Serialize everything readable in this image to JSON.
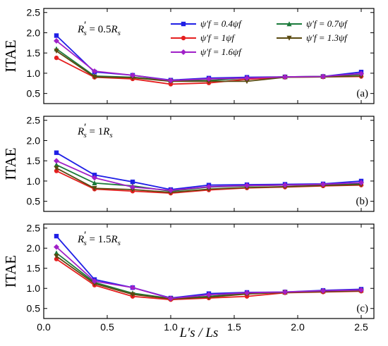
{
  "colors": {
    "s04": "#1f1fe6",
    "s07": "#1a7a3a",
    "s1": "#e51f1f",
    "s13": "#5a4a10",
    "s16": "#a020c8"
  },
  "xlabel": "L′s / Ls",
  "chart_data": [
    {
      "type": "line",
      "panel_tag": "(a)",
      "annotation": "R′s = 0.5Rs",
      "ylabel": "ITAE",
      "xlim": [
        0,
        2.6
      ],
      "ylim": [
        0.25,
        2.6
      ],
      "xticks": [
        "0.0",
        "0.5",
        "1.0",
        "1.5",
        "2.0",
        "2.5"
      ],
      "yticks": [
        "0.5",
        "1.0",
        "1.5",
        "2.0",
        "2.5"
      ],
      "legend": {
        "placement": "top-right",
        "entries": [
          "ψ′f = 0.4ψf",
          "ψ′f = 0.7ψf",
          "ψ′f = 1ψf",
          "ψ′f = 1.3ψf",
          "ψ′f = 1.6ψf"
        ]
      },
      "x": [
        0.1,
        0.4,
        0.7,
        1.0,
        1.3,
        1.6,
        1.9,
        2.2,
        2.5
      ],
      "series": [
        {
          "name": "ψ′f = 0.4ψf",
          "color_key": "s04",
          "marker": "square",
          "values": [
            1.93,
            1.03,
            0.95,
            0.83,
            0.88,
            0.9,
            0.91,
            0.92,
            1.03
          ]
        },
        {
          "name": "ψ′f = 0.7ψf",
          "color_key": "s07",
          "marker": "triangle",
          "values": [
            1.6,
            0.93,
            0.9,
            0.82,
            0.82,
            0.88,
            0.91,
            0.92,
            0.97
          ]
        },
        {
          "name": "ψ′f = 1ψf",
          "color_key": "s1",
          "marker": "circle",
          "values": [
            1.38,
            0.9,
            0.86,
            0.73,
            0.76,
            0.85,
            0.9,
            0.91,
            0.92
          ]
        },
        {
          "name": "ψ′f = 1.3ψf",
          "color_key": "s13",
          "marker": "triangle-down",
          "values": [
            1.55,
            0.91,
            0.89,
            0.8,
            0.8,
            0.8,
            0.9,
            0.91,
            0.93
          ]
        },
        {
          "name": "ψ′f = 1.6ψf",
          "color_key": "s16",
          "marker": "diamond",
          "values": [
            1.8,
            1.05,
            0.95,
            0.82,
            0.86,
            0.88,
            0.91,
            0.92,
            0.99
          ]
        }
      ]
    },
    {
      "type": "line",
      "panel_tag": "(b)",
      "annotation": "R′s = 1Rs",
      "ylabel": "ITAE",
      "xlim": [
        0,
        2.6
      ],
      "ylim": [
        0.25,
        2.6
      ],
      "xticks": [
        "0.0",
        "0.5",
        "1.0",
        "1.5",
        "2.0",
        "2.5"
      ],
      "yticks": [
        "0.5",
        "1.0",
        "1.5",
        "2.0",
        "2.5"
      ],
      "x": [
        0.1,
        0.4,
        0.7,
        1.0,
        1.3,
        1.6,
        1.9,
        2.2,
        2.5
      ],
      "series": [
        {
          "name": "ψ′f = 0.4ψf",
          "color_key": "s04",
          "marker": "square",
          "values": [
            1.7,
            1.15,
            0.98,
            0.79,
            0.9,
            0.91,
            0.92,
            0.93,
            1.0
          ]
        },
        {
          "name": "ψ′f = 0.7ψf",
          "color_key": "s07",
          "marker": "triangle",
          "values": [
            1.4,
            0.95,
            0.88,
            0.75,
            0.85,
            0.88,
            0.9,
            0.91,
            0.94
          ]
        },
        {
          "name": "ψ′f = 1ψf",
          "color_key": "s1",
          "marker": "circle",
          "values": [
            1.25,
            0.8,
            0.75,
            0.7,
            0.78,
            0.83,
            0.85,
            0.88,
            0.9
          ]
        },
        {
          "name": "ψ′f = 1.3ψf",
          "color_key": "s13",
          "marker": "triangle-down",
          "values": [
            1.32,
            0.82,
            0.79,
            0.72,
            0.8,
            0.84,
            0.86,
            0.89,
            0.91
          ]
        },
        {
          "name": "ψ′f = 1.6ψf",
          "color_key": "s16",
          "marker": "diamond",
          "values": [
            1.5,
            1.08,
            0.85,
            0.77,
            0.86,
            0.89,
            0.9,
            0.92,
            0.96
          ]
        }
      ]
    },
    {
      "type": "line",
      "panel_tag": "(c)",
      "annotation": "R′s = 1.5Rs",
      "ylabel": "ITAE",
      "xlim": [
        0,
        2.6
      ],
      "ylim": [
        0.25,
        2.6
      ],
      "xticks": [
        "0.0",
        "0.5",
        "1.0",
        "1.5",
        "2.0",
        "2.5"
      ],
      "yticks": [
        "0.5",
        "1.0",
        "1.5",
        "2.0",
        "2.5"
      ],
      "x": [
        0.1,
        0.4,
        0.7,
        1.0,
        1.3,
        1.6,
        1.9,
        2.2,
        2.5
      ],
      "series": [
        {
          "name": "ψ′f = 0.4ψf",
          "color_key": "s04",
          "marker": "square",
          "values": [
            2.3,
            1.22,
            1.02,
            0.76,
            0.87,
            0.9,
            0.91,
            0.95,
            0.98
          ]
        },
        {
          "name": "ψ′f = 0.7ψf",
          "color_key": "s07",
          "marker": "triangle",
          "values": [
            1.88,
            1.15,
            0.88,
            0.75,
            0.8,
            0.88,
            0.9,
            0.93,
            0.95
          ]
        },
        {
          "name": "ψ′f = 1ψf",
          "color_key": "s1",
          "marker": "circle",
          "values": [
            1.73,
            1.08,
            0.8,
            0.72,
            0.76,
            0.8,
            0.89,
            0.91,
            0.93
          ]
        },
        {
          "name": "ψ′f = 1.3ψf",
          "color_key": "s13",
          "marker": "triangle-down",
          "values": [
            1.8,
            1.12,
            0.85,
            0.74,
            0.78,
            0.86,
            0.9,
            0.92,
            0.94
          ]
        },
        {
          "name": "ψ′f = 1.6ψf",
          "color_key": "s16",
          "marker": "diamond",
          "values": [
            2.03,
            1.18,
            1.02,
            0.75,
            0.84,
            0.89,
            0.91,
            0.94,
            0.96
          ]
        }
      ]
    }
  ]
}
